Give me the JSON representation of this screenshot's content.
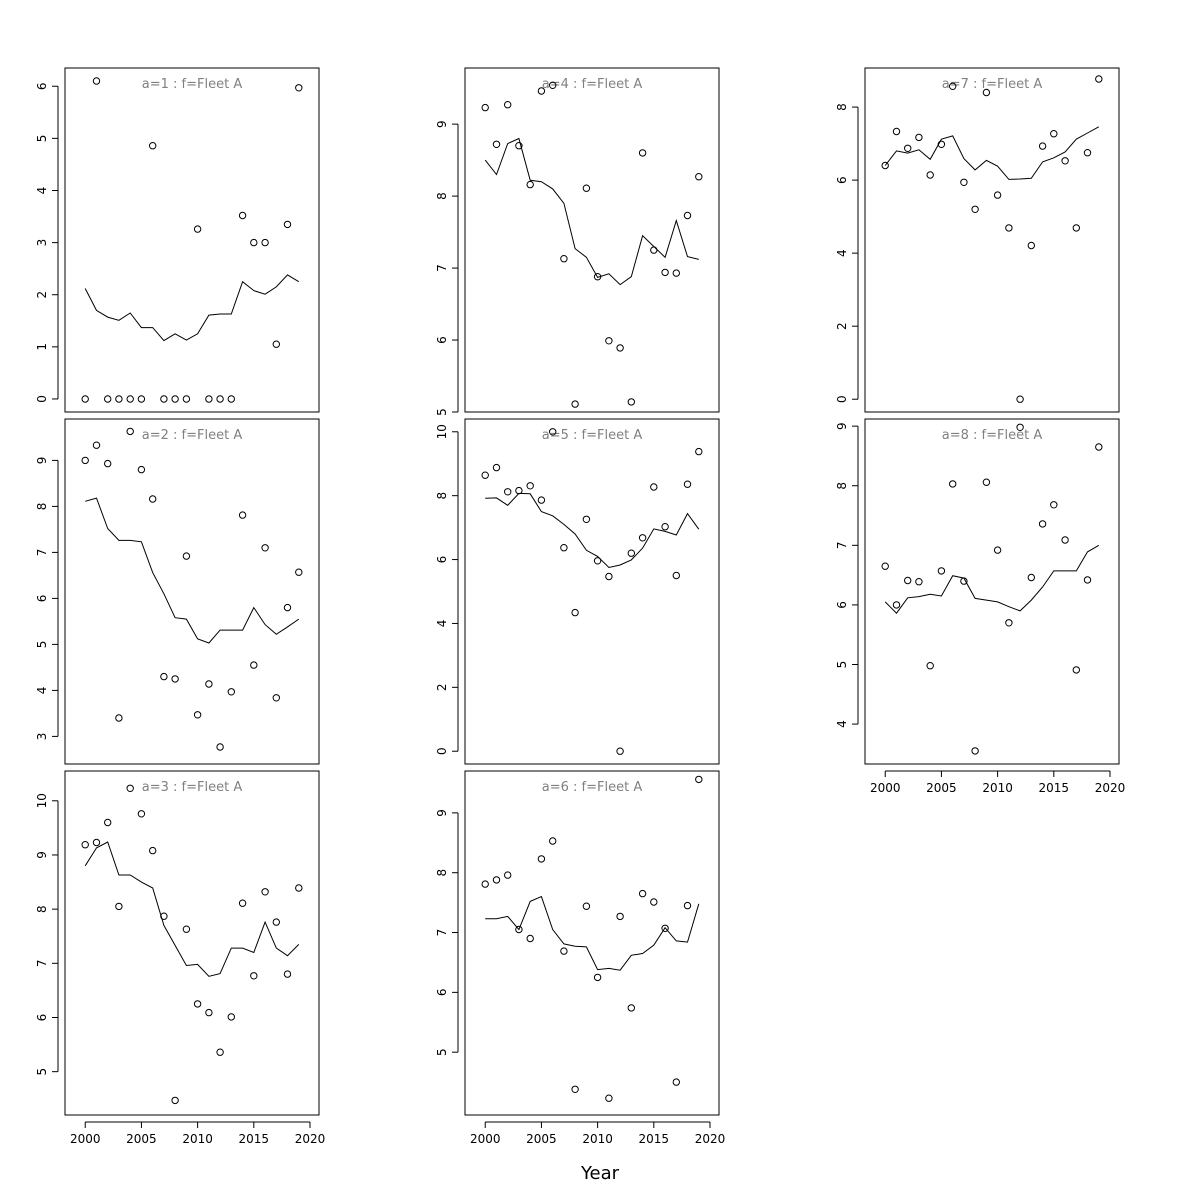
{
  "figure": {
    "xlabel": "Year",
    "x_ticks": [
      2000,
      2005,
      2010,
      2015,
      2020
    ]
  },
  "chart_data": [
    {
      "type": "scatter",
      "title": "a=1 : f=Fleet A",
      "xlim": [
        1998.2,
        2020.8
      ],
      "ylim": [
        -0.25,
        6.35
      ],
      "y_ticks": [
        0,
        1,
        2,
        3,
        4,
        5,
        6
      ],
      "x": [
        2000,
        2001,
        2002,
        2003,
        2004,
        2005,
        2006,
        2007,
        2008,
        2009,
        2010,
        2011,
        2012,
        2013,
        2014,
        2015,
        2016,
        2017,
        2018,
        2019
      ],
      "series": [
        {
          "values": [
            0,
            6.1,
            0,
            0,
            0,
            0,
            4.86,
            0,
            0,
            0,
            3.26,
            0,
            0,
            0,
            3.52,
            3.0,
            3.0,
            1.05,
            3.35,
            5.97
          ]
        },
        {
          "values": [
            2.12,
            1.7,
            1.57,
            1.51,
            1.65,
            1.37,
            1.37,
            1.12,
            1.25,
            1.13,
            1.25,
            1.61,
            1.63,
            1.63,
            2.25,
            2.08,
            2.01,
            2.15,
            2.38,
            2.25
          ]
        }
      ]
    },
    {
      "type": "scatter",
      "title": "a=2 : f=Fleet A",
      "xlim": [
        1998.2,
        2020.8
      ],
      "ylim": [
        2.4,
        9.9
      ],
      "y_ticks": [
        3,
        4,
        5,
        6,
        7,
        8,
        9
      ],
      "x": [
        2000,
        2001,
        2002,
        2003,
        2004,
        2005,
        2006,
        2007,
        2008,
        2009,
        2010,
        2011,
        2012,
        2013,
        2014,
        2015,
        2016,
        2017,
        2018,
        2019
      ],
      "series": [
        {
          "values": [
            9.0,
            9.33,
            8.93,
            3.4,
            9.63,
            8.8,
            8.16,
            4.3,
            4.25,
            6.92,
            3.47,
            4.14,
            2.77,
            3.97,
            7.81,
            4.55,
            7.1,
            3.84,
            5.8,
            6.57
          ]
        },
        {
          "values": [
            8.11,
            8.18,
            7.52,
            7.26,
            7.26,
            7.23,
            6.56,
            6.1,
            5.58,
            5.55,
            5.12,
            5.03,
            5.31,
            5.31,
            5.31,
            5.8,
            5.43,
            5.22,
            5.38,
            5.55
          ]
        }
      ]
    },
    {
      "type": "scatter",
      "title": "a=3 : f=Fleet A",
      "xlim": [
        1998.2,
        2020.8
      ],
      "ylim": [
        4.2,
        10.55
      ],
      "y_ticks": [
        5,
        6,
        7,
        8,
        9,
        10
      ],
      "x": [
        2000,
        2001,
        2002,
        2003,
        2004,
        2005,
        2006,
        2007,
        2008,
        2009,
        2010,
        2011,
        2012,
        2013,
        2014,
        2015,
        2016,
        2017,
        2018,
        2019
      ],
      "series": [
        {
          "values": [
            9.19,
            9.23,
            9.6,
            8.05,
            10.23,
            9.76,
            9.08,
            7.87,
            4.47,
            7.63,
            6.25,
            6.09,
            5.36,
            6.01,
            8.11,
            6.77,
            8.32,
            7.76,
            6.8,
            8.39
          ]
        },
        {
          "values": [
            8.8,
            9.13,
            9.24,
            8.63,
            8.63,
            8.5,
            8.39,
            7.7,
            7.33,
            6.96,
            6.98,
            6.76,
            6.81,
            7.28,
            7.28,
            7.2,
            7.76,
            7.28,
            7.14,
            7.35
          ]
        }
      ]
    },
    {
      "type": "scatter",
      "title": "a=4 : f=Fleet A",
      "xlim": [
        1998.2,
        2020.8
      ],
      "ylim": [
        5.0,
        9.78
      ],
      "y_ticks": [
        5,
        6,
        7,
        8,
        9
      ],
      "x": [
        2000,
        2001,
        2002,
        2003,
        2004,
        2005,
        2006,
        2007,
        2008,
        2009,
        2010,
        2011,
        2012,
        2013,
        2014,
        2015,
        2016,
        2017,
        2018,
        2019
      ],
      "series": [
        {
          "values": [
            9.23,
            8.72,
            9.27,
            8.7,
            8.16,
            9.46,
            9.54,
            7.13,
            5.11,
            8.11,
            6.88,
            5.99,
            5.89,
            5.14,
            8.6,
            7.25,
            6.94,
            6.93,
            7.73,
            8.27
          ]
        },
        {
          "values": [
            8.5,
            8.3,
            8.73,
            8.8,
            8.22,
            8.2,
            8.1,
            7.9,
            7.27,
            7.15,
            6.87,
            6.92,
            6.77,
            6.88,
            7.45,
            7.3,
            7.15,
            7.66,
            7.16,
            7.12
          ]
        }
      ]
    },
    {
      "type": "scatter",
      "title": "a=5 : f=Fleet A",
      "xlim": [
        1998.2,
        2020.8
      ],
      "ylim": [
        -0.4,
        10.4
      ],
      "y_ticks": [
        0,
        2,
        4,
        6,
        8,
        10
      ],
      "x": [
        2000,
        2001,
        2002,
        2003,
        2004,
        2005,
        2006,
        2007,
        2008,
        2009,
        2010,
        2011,
        2012,
        2013,
        2014,
        2015,
        2016,
        2017,
        2018,
        2019
      ],
      "series": [
        {
          "values": [
            8.64,
            8.88,
            8.12,
            8.16,
            8.31,
            7.86,
            10.0,
            6.37,
            4.34,
            7.26,
            5.96,
            5.47,
            0,
            6.2,
            6.68,
            8.27,
            7.03,
            5.5,
            8.36,
            9.38
          ]
        },
        {
          "values": [
            7.92,
            7.93,
            7.7,
            8.07,
            8.06,
            7.5,
            7.37,
            7.1,
            6.8,
            6.29,
            6.1,
            5.75,
            5.83,
            5.99,
            6.36,
            6.96,
            6.88,
            6.77,
            7.44,
            6.95
          ]
        }
      ]
    },
    {
      "type": "scatter",
      "title": "a=6 : f=Fleet A",
      "xlim": [
        1998.2,
        2020.8
      ],
      "ylim": [
        3.95,
        9.7
      ],
      "y_ticks": [
        5,
        6,
        7,
        8,
        9
      ],
      "x": [
        2000,
        2001,
        2002,
        2003,
        2004,
        2005,
        2006,
        2007,
        2008,
        2009,
        2010,
        2011,
        2012,
        2013,
        2014,
        2015,
        2016,
        2017,
        2018,
        2019
      ],
      "series": [
        {
          "values": [
            7.81,
            7.88,
            7.96,
            7.05,
            6.9,
            8.23,
            8.53,
            6.69,
            4.38,
            7.44,
            6.25,
            4.23,
            7.27,
            5.74,
            7.65,
            7.51,
            7.07,
            4.5,
            7.45,
            9.56
          ]
        },
        {
          "values": [
            7.23,
            7.23,
            7.27,
            7.05,
            7.52,
            7.6,
            7.05,
            6.81,
            6.77,
            6.76,
            6.38,
            6.4,
            6.37,
            6.62,
            6.65,
            6.79,
            7.08,
            6.86,
            6.84,
            7.48
          ]
        }
      ]
    },
    {
      "type": "scatter",
      "title": "a=7 : f=Fleet A",
      "xlim": [
        1998.2,
        2020.8
      ],
      "ylim": [
        -0.35,
        9.07
      ],
      "y_ticks": [
        0,
        2,
        4,
        6,
        8
      ],
      "x": [
        2000,
        2001,
        2002,
        2003,
        2004,
        2005,
        2006,
        2007,
        2008,
        2009,
        2010,
        2011,
        2012,
        2013,
        2014,
        2015,
        2016,
        2017,
        2018,
        2019
      ],
      "series": [
        {
          "values": [
            6.4,
            7.33,
            6.87,
            7.17,
            6.14,
            6.98,
            8.57,
            5.94,
            5.2,
            8.4,
            5.59,
            4.69,
            0,
            4.21,
            6.93,
            7.27,
            6.53,
            4.69,
            6.75,
            8.77
          ]
        },
        {
          "values": [
            6.4,
            6.8,
            6.74,
            6.83,
            6.57,
            7.12,
            7.21,
            6.59,
            6.28,
            6.54,
            6.38,
            6.02,
            6.03,
            6.05,
            6.5,
            6.61,
            6.77,
            7.12,
            7.29,
            7.46
          ]
        }
      ]
    },
    {
      "type": "scatter",
      "title": "a=8 : f=Fleet A",
      "xlim": [
        1998.2,
        2020.8
      ],
      "ylim": [
        3.33,
        9.12
      ],
      "y_ticks": [
        4,
        5,
        6,
        7,
        8,
        9
      ],
      "x": [
        2000,
        2001,
        2002,
        2003,
        2004,
        2005,
        2006,
        2007,
        2008,
        2009,
        2010,
        2011,
        2012,
        2013,
        2014,
        2015,
        2016,
        2017,
        2018,
        2019
      ],
      "series": [
        {
          "values": [
            6.65,
            6.0,
            6.41,
            6.39,
            4.98,
            6.57,
            8.03,
            6.4,
            3.55,
            8.06,
            6.92,
            5.7,
            8.98,
            6.46,
            7.36,
            7.68,
            7.09,
            4.91,
            6.42,
            8.65
          ]
        },
        {
          "values": [
            6.05,
            5.86,
            6.12,
            6.14,
            6.18,
            6.15,
            6.49,
            6.45,
            6.11,
            6.08,
            6.05,
            5.97,
            5.9,
            6.08,
            6.3,
            6.57,
            6.57,
            6.57,
            6.89,
            7.0
          ]
        }
      ]
    }
  ]
}
